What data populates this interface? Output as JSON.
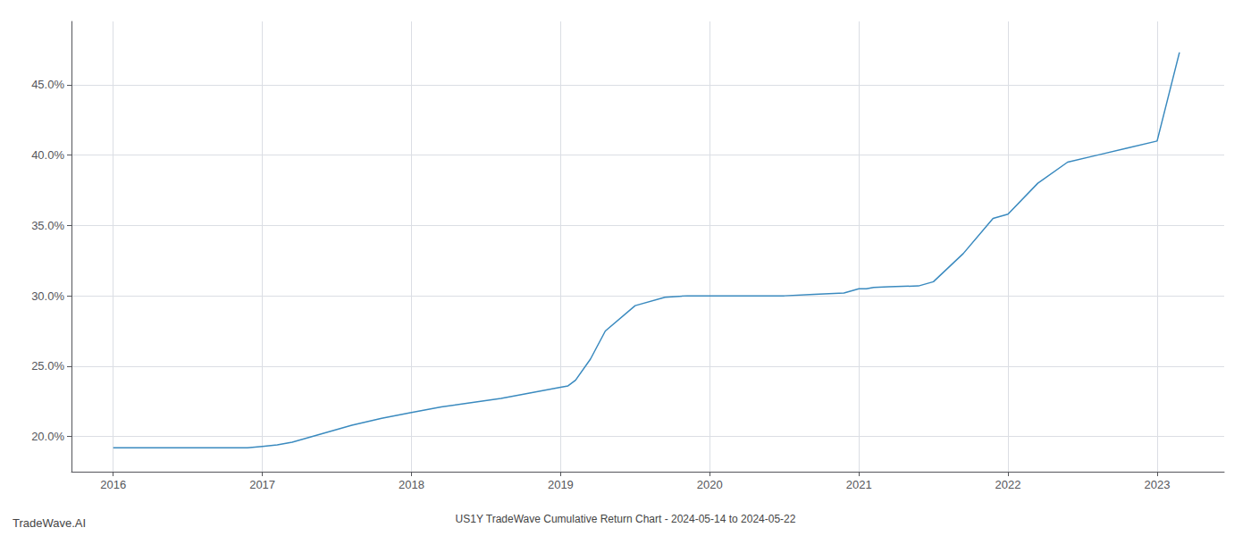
{
  "chart_data": {
    "type": "line",
    "title": "US1Y TradeWave Cumulative Return Chart - 2024-05-14 to 2024-05-22",
    "annotations": [
      "TradeWave.AI"
    ],
    "x": [
      2016.0,
      2016.1,
      2016.2,
      2016.3,
      2016.5,
      2016.7,
      2016.9,
      2017.0,
      2017.1,
      2017.2,
      2017.4,
      2017.6,
      2017.8,
      2018.0,
      2018.2,
      2018.4,
      2018.6,
      2018.8,
      2019.0,
      2019.05,
      2019.1,
      2019.2,
      2019.3,
      2019.5,
      2019.7,
      2019.85,
      2020.0,
      2020.1,
      2020.3,
      2020.5,
      2020.7,
      2020.9,
      2021.0,
      2021.05,
      2021.1,
      2021.2,
      2021.4,
      2021.5,
      2021.7,
      2021.9,
      2022.0,
      2022.2,
      2022.4,
      2022.6,
      2022.8,
      2023.0,
      2023.15
    ],
    "values": [
      19.2,
      19.2,
      19.2,
      19.2,
      19.2,
      19.2,
      19.2,
      19.3,
      19.4,
      19.6,
      20.2,
      20.8,
      21.3,
      21.7,
      22.1,
      22.4,
      22.7,
      23.1,
      23.5,
      23.6,
      24.0,
      25.5,
      27.5,
      29.3,
      29.9,
      30.0,
      30.0,
      30.0,
      30.0,
      30.0,
      30.1,
      30.2,
      30.5,
      30.5,
      30.6,
      30.65,
      30.7,
      31.0,
      33.0,
      35.5,
      35.8,
      38.0,
      39.5,
      40.0,
      40.5,
      41.0,
      47.3
    ],
    "color": "#3a8abf",
    "xlim": [
      2015.72,
      2023.45
    ],
    "ylim": [
      17.5,
      49.5
    ],
    "xticks": [
      2016,
      2017,
      2018,
      2019,
      2020,
      2021,
      2022,
      2023
    ],
    "yticks": [
      {
        "value": 20.0,
        "label": "20.0%"
      },
      {
        "value": 25.0,
        "label": "25.0%"
      },
      {
        "value": 30.0,
        "label": "30.0%"
      },
      {
        "value": 35.0,
        "label": "35.0%"
      },
      {
        "value": 40.0,
        "label": "40.0%"
      },
      {
        "value": 45.0,
        "label": "45.0%"
      }
    ],
    "grid": true
  }
}
